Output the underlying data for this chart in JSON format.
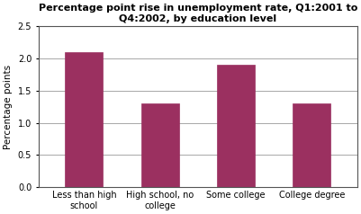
{
  "categories": [
    "Less than high\nschool",
    "High school, no\ncollege",
    "Some college",
    "College degree"
  ],
  "values": [
    2.1,
    1.3,
    1.9,
    1.3
  ],
  "bar_color": "#9B3060",
  "title": "Percentage point rise in unemployment rate, Q1:2001 to\nQ4:2002, by education level",
  "ylabel": "Percentage points",
  "ylim": [
    0,
    2.5
  ],
  "yticks": [
    0.0,
    0.5,
    1.0,
    1.5,
    2.0,
    2.5
  ],
  "title_fontsize": 8,
  "label_fontsize": 7.5,
  "tick_fontsize": 7,
  "background_color": "#ffffff",
  "grid_color": "#999999",
  "bar_width": 0.5
}
